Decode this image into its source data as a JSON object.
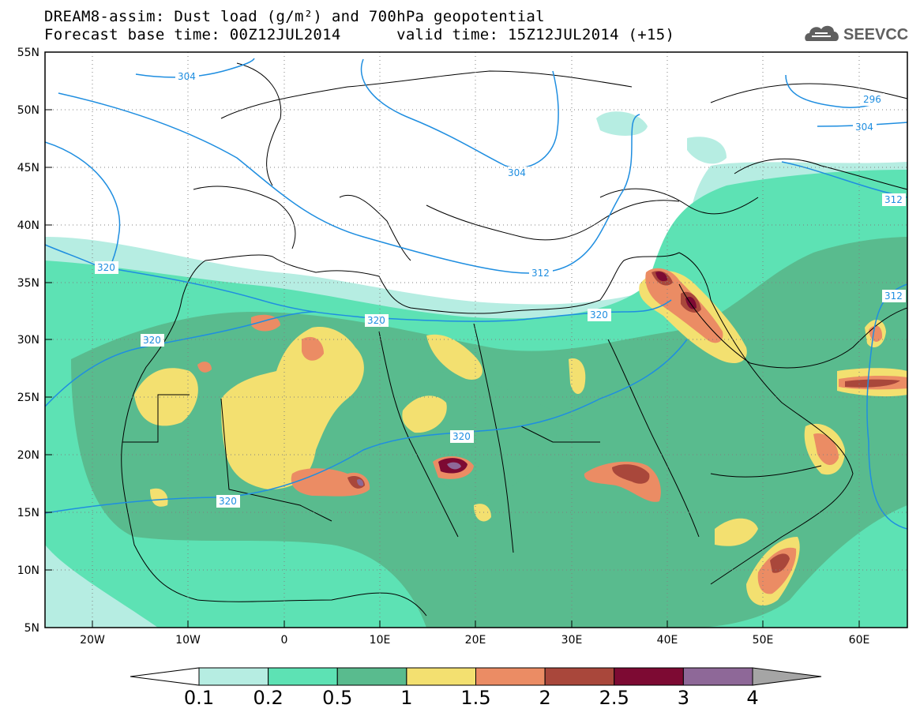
{
  "title": {
    "line1": "DREAM8-assim: Dust load (g/m²) and 700hPa geopotential",
    "line2": "Forecast base time: 00Z12JUL2014      valid time: 15Z12JUL2014 (+15)"
  },
  "logo": {
    "text": "SEEVCCC",
    "icon": "cloud-logo-icon"
  },
  "map": {
    "lat_labels": [
      "55N",
      "50N",
      "45N",
      "40N",
      "35N",
      "30N",
      "25N",
      "20N",
      "15N",
      "10N",
      "5N"
    ],
    "lon_labels": [
      "20W",
      "10W",
      "0",
      "10E",
      "20E",
      "30E",
      "40E",
      "50E",
      "60E"
    ],
    "contour_labels": [
      "304",
      "296",
      "304",
      "304",
      "312",
      "312",
      "312",
      "320",
      "320",
      "320",
      "320",
      "320",
      "320"
    ]
  },
  "colorbar": {
    "labels": [
      "0.1",
      "0.2",
      "0.5",
      "1",
      "1.5",
      "2",
      "2.5",
      "3",
      "4"
    ],
    "colors": [
      "#b6ede2",
      "#5de2b4",
      "#59bb8e",
      "#f3e070",
      "#eb8c64",
      "#a9473b",
      "#7d0a33",
      "#8e6898"
    ],
    "underflow_color": "#ffffff",
    "overflow_color": "#a5a5a5"
  }
}
